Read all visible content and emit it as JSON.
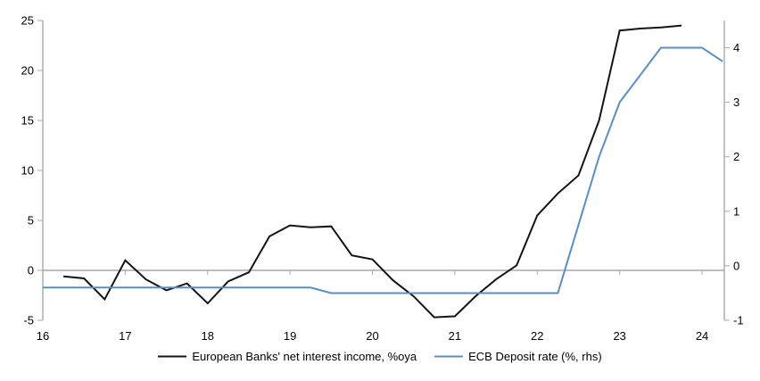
{
  "colors": {
    "nii_line": "#141414",
    "ecb_line": "#5B8EC4",
    "axis": "#A9A9A9",
    "text": "#000000"
  },
  "chart_data": {
    "type": "line",
    "title": "",
    "grid": "zero-line-only",
    "legend_position": "bottom-center",
    "x_axis": {
      "tick_labels": [
        "16",
        "17",
        "18",
        "19",
        "20",
        "21",
        "22",
        "23",
        "24"
      ],
      "ticks": [
        16,
        17,
        18,
        19,
        20,
        21,
        22,
        23,
        24
      ],
      "range": [
        16,
        24.27
      ]
    },
    "y_left": {
      "tick_labels": [
        "25",
        "20",
        "15",
        "10",
        "5",
        "0",
        "-5"
      ],
      "ticks": [
        25,
        20,
        15,
        10,
        5,
        0,
        -5
      ],
      "range": [
        -5,
        25
      ]
    },
    "y_right": {
      "tick_labels": [
        "4",
        "3",
        "2",
        "1",
        "0",
        "-1"
      ],
      "ticks": [
        4,
        3,
        2,
        1,
        0,
        -1
      ],
      "range": [
        -1,
        4.5
      ]
    },
    "series": [
      {
        "name": "European Banks' net interest income, %oya",
        "axis": "left",
        "color": "#141414",
        "x": [
          16.25,
          16.5,
          16.75,
          17.0,
          17.25,
          17.5,
          17.75,
          18.0,
          18.25,
          18.5,
          18.75,
          19.0,
          19.25,
          19.5,
          19.75,
          20.0,
          20.25,
          20.5,
          20.75,
          21.0,
          21.25,
          21.5,
          21.75,
          22.0,
          22.25,
          22.5,
          22.75,
          23.0,
          23.25,
          23.5,
          23.75
        ],
        "y": [
          -0.6,
          -0.8,
          -2.9,
          1.0,
          -0.9,
          -2.0,
          -1.3,
          -3.3,
          -1.1,
          -0.2,
          3.4,
          4.5,
          4.3,
          4.4,
          1.5,
          1.1,
          -1.0,
          -2.6,
          -4.7,
          -4.6,
          -2.6,
          -0.9,
          0.5,
          5.5,
          7.7,
          9.5,
          15.0,
          24.0,
          24.2,
          24.3,
          24.5
        ]
      },
      {
        "name": "ECB Deposit rate (%, rhs)",
        "axis": "right",
        "color": "#5B8EC4",
        "x": [
          16.0,
          16.25,
          16.5,
          16.75,
          17.0,
          17.25,
          17.5,
          17.75,
          18.0,
          18.25,
          18.5,
          18.75,
          19.0,
          19.25,
          19.5,
          19.75,
          20.0,
          20.25,
          20.5,
          20.75,
          21.0,
          21.25,
          21.5,
          21.75,
          22.0,
          22.25,
          22.5,
          22.75,
          23.0,
          23.25,
          23.5,
          23.75,
          24.0,
          24.25
        ],
        "y": [
          -0.4,
          -0.4,
          -0.4,
          -0.4,
          -0.4,
          -0.4,
          -0.4,
          -0.4,
          -0.4,
          -0.4,
          -0.4,
          -0.4,
          -0.4,
          -0.4,
          -0.5,
          -0.5,
          -0.5,
          -0.5,
          -0.5,
          -0.5,
          -0.5,
          -0.5,
          -0.5,
          -0.5,
          -0.5,
          -0.5,
          0.75,
          2.0,
          3.0,
          3.5,
          4.0,
          4.0,
          4.0,
          3.75
        ]
      }
    ]
  }
}
